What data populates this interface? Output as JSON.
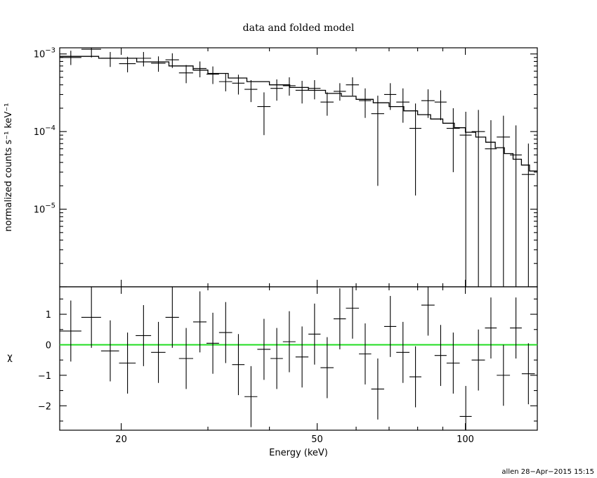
{
  "chart_data": [
    {
      "type": "scatter",
      "panel": "top",
      "title": "data and folded model",
      "ylabel": "normalized counts s⁻¹ keV⁻¹",
      "xscale": "log",
      "yscale": "log",
      "xlim": [
        15.0,
        140.0
      ],
      "ylim": [
        1e-06,
        0.0012
      ],
      "ytick_labels": [
        {
          "value": 0.001,
          "mantissa": "10",
          "exp": "−3"
        },
        {
          "value": 0.0001,
          "mantissa": "10",
          "exp": "−4"
        },
        {
          "value": 1e-05,
          "mantissa": "10",
          "exp": "−5"
        }
      ],
      "series": [
        {
          "kind": "data",
          "points": [
            {
              "x": 15.8,
              "xlo": 15.0,
              "xhi": 16.6,
              "y": 0.0009,
              "ylo": 0.00072,
              "yhi": 0.0011
            },
            {
              "x": 17.4,
              "xlo": 16.6,
              "xhi": 18.2,
              "y": 0.00115,
              "ylo": 0.0009,
              "yhi": 0.0012
            },
            {
              "x": 19.0,
              "xlo": 18.2,
              "xhi": 19.8,
              "y": 0.00088,
              "ylo": 0.00068,
              "yhi": 0.00106
            },
            {
              "x": 20.6,
              "xlo": 19.8,
              "xhi": 21.4,
              "y": 0.00075,
              "ylo": 0.00058,
              "yhi": 0.00092
            },
            {
              "x": 22.2,
              "xlo": 21.4,
              "xhi": 23.0,
              "y": 0.00088,
              "ylo": 0.00069,
              "yhi": 0.00106
            },
            {
              "x": 23.8,
              "xlo": 23.0,
              "xhi": 24.6,
              "y": 0.00076,
              "ylo": 0.00059,
              "yhi": 0.00093
            },
            {
              "x": 25.4,
              "xlo": 24.6,
              "xhi": 26.2,
              "y": 0.00084,
              "ylo": 0.00066,
              "yhi": 0.00102
            },
            {
              "x": 27.1,
              "xlo": 26.2,
              "xhi": 28.0,
              "y": 0.00057,
              "ylo": 0.00042,
              "yhi": 0.00072
            },
            {
              "x": 28.9,
              "xlo": 28.0,
              "xhi": 29.8,
              "y": 0.00065,
              "ylo": 0.0005,
              "yhi": 0.0008
            },
            {
              "x": 30.7,
              "xlo": 29.8,
              "xhi": 31.6,
              "y": 0.00055,
              "ylo": 0.00041,
              "yhi": 0.00069
            },
            {
              "x": 32.6,
              "xlo": 31.6,
              "xhi": 33.6,
              "y": 0.00044,
              "ylo": 0.00033,
              "yhi": 0.00056
            },
            {
              "x": 34.6,
              "xlo": 33.6,
              "xhi": 35.6,
              "y": 0.00042,
              "ylo": 0.0003,
              "yhi": 0.00054
            },
            {
              "x": 36.7,
              "xlo": 35.6,
              "xhi": 37.8,
              "y": 0.00035,
              "ylo": 0.00024,
              "yhi": 0.00046
            },
            {
              "x": 39.0,
              "xlo": 37.8,
              "xhi": 40.2,
              "y": 0.00021,
              "ylo": 9e-05,
              "yhi": 0.00032
            },
            {
              "x": 41.4,
              "xlo": 40.2,
              "xhi": 42.6,
              "y": 0.00036,
              "ylo": 0.00025,
              "yhi": 0.00047
            },
            {
              "x": 43.9,
              "xlo": 42.6,
              "xhi": 45.2,
              "y": 0.00039,
              "ylo": 0.00029,
              "yhi": 0.0005
            },
            {
              "x": 46.6,
              "xlo": 45.2,
              "xhi": 48.0,
              "y": 0.00034,
              "ylo": 0.00023,
              "yhi": 0.00045
            },
            {
              "x": 49.4,
              "xlo": 48.0,
              "xhi": 50.8,
              "y": 0.00036,
              "ylo": 0.00026,
              "yhi": 0.00046
            },
            {
              "x": 52.4,
              "xlo": 50.8,
              "xhi": 54.0,
              "y": 0.00024,
              "ylo": 0.00016,
              "yhi": 0.00032
            },
            {
              "x": 55.6,
              "xlo": 54.0,
              "xhi": 57.2,
              "y": 0.00033,
              "ylo": 0.00025,
              "yhi": 0.00042
            },
            {
              "x": 59.0,
              "xlo": 57.2,
              "xhi": 60.8,
              "y": 0.0004,
              "ylo": 0.00029,
              "yhi": 0.0005
            },
            {
              "x": 62.6,
              "xlo": 60.8,
              "xhi": 64.4,
              "y": 0.00025,
              "ylo": 0.00015,
              "yhi": 0.00036
            },
            {
              "x": 66.4,
              "xlo": 64.4,
              "xhi": 68.4,
              "y": 0.00017,
              "ylo": 2e-05,
              "yhi": 0.00029
            },
            {
              "x": 70.4,
              "xlo": 68.4,
              "xhi": 72.4,
              "y": 0.0003,
              "ylo": 0.00019,
              "yhi": 0.00042
            },
            {
              "x": 74.7,
              "xlo": 72.4,
              "xhi": 77.0,
              "y": 0.00024,
              "ylo": 0.00013,
              "yhi": 0.00036
            },
            {
              "x": 79.2,
              "xlo": 77.0,
              "xhi": 81.4,
              "y": 0.00011,
              "ylo": 1.5e-05,
              "yhi": 0.00023
            },
            {
              "x": 84.0,
              "xlo": 81.4,
              "xhi": 86.6,
              "y": 0.00025,
              "ylo": 0.00015,
              "yhi": 0.00035
            },
            {
              "x": 89.1,
              "xlo": 86.6,
              "xhi": 91.6,
              "y": 0.00024,
              "ylo": 0.00014,
              "yhi": 0.00034
            },
            {
              "x": 94.5,
              "xlo": 91.6,
              "xhi": 97.4,
              "y": 0.00011,
              "ylo": 3e-05,
              "yhi": 0.0002
            },
            {
              "x": 100.2,
              "xlo": 97.4,
              "xhi": 103.0,
              "y": 9e-05,
              "ylo": 1e-06,
              "yhi": 0.00018
            },
            {
              "x": 106.3,
              "xlo": 103.0,
              "xhi": 109.6,
              "y": 0.0001,
              "ylo": 1e-06,
              "yhi": 0.00019
            },
            {
              "x": 112.7,
              "xlo": 109.6,
              "xhi": 115.8,
              "y": 6e-05,
              "ylo": 1e-06,
              "yhi": 0.00014
            },
            {
              "x": 119.5,
              "xlo": 115.8,
              "xhi": 123.2,
              "y": 8.5e-05,
              "ylo": 1e-06,
              "yhi": 0.00016
            },
            {
              "x": 126.7,
              "xlo": 123.2,
              "xhi": 130.2,
              "y": 5e-05,
              "ylo": 1e-06,
              "yhi": 0.00012
            },
            {
              "x": 134.3,
              "xlo": 130.2,
              "xhi": 138.4,
              "y": 2.8e-05,
              "ylo": 1e-06,
              "yhi": 7e-05
            }
          ]
        },
        {
          "kind": "model",
          "edges": [
            15.0,
            18.0,
            21.5,
            25.0,
            28.0,
            30.0,
            33.0,
            36.0,
            40.0,
            44.0,
            48.0,
            52.0,
            56.0,
            60.0,
            65.0,
            70.0,
            75.0,
            80.0,
            85.0,
            90.0,
            95.0,
            100.0,
            105.0,
            110.0,
            115.0,
            120.0,
            125.0,
            130.0,
            135.0,
            140.0
          ],
          "values": [
            0.00093,
            0.00088,
            0.00079,
            0.0007,
            0.00062,
            0.00056,
            0.00049,
            0.00044,
            0.0004,
            0.00037,
            0.00034,
            0.00031,
            0.000285,
            0.00026,
            0.000235,
            0.00021,
            0.000185,
            0.000165,
            0.000145,
            0.000128,
            0.000112,
            9.8e-05,
            8.5e-05,
            7.3e-05,
            6.2e-05,
            5.2e-05,
            4.4e-05,
            3.7e-05,
            3.1e-05
          ]
        }
      ]
    },
    {
      "type": "scatter",
      "panel": "bottom",
      "xlabel": "Energy (keV)",
      "ylabel": "χ",
      "xscale": "log",
      "xlim": [
        15.0,
        140.0
      ],
      "ylim": [
        -2.8,
        1.9
      ],
      "xtick_labels": [
        {
          "value": 20,
          "label": "20"
        },
        {
          "value": 50,
          "label": "50"
        },
        {
          "value": 100,
          "label": "100"
        }
      ],
      "ytick_labels": [
        {
          "value": 1,
          "label": "1"
        },
        {
          "value": 0,
          "label": "0"
        },
        {
          "value": -1,
          "label": "−1"
        },
        {
          "value": -2,
          "label": "−2"
        }
      ],
      "zero_line_color": "#22dd22",
      "points": [
        {
          "x": 15.8,
          "xlo": 15.0,
          "xhi": 16.6,
          "y": 0.45,
          "ylo": -0.55,
          "yhi": 1.45
        },
        {
          "x": 17.4,
          "xlo": 16.6,
          "xhi": 18.2,
          "y": 0.9,
          "ylo": -0.1,
          "yhi": 1.9
        },
        {
          "x": 19.0,
          "xlo": 18.2,
          "xhi": 19.8,
          "y": -0.2,
          "ylo": -1.2,
          "yhi": 0.8
        },
        {
          "x": 20.6,
          "xlo": 19.8,
          "xhi": 21.4,
          "y": -0.6,
          "ylo": -1.6,
          "yhi": 0.4
        },
        {
          "x": 22.2,
          "xlo": 21.4,
          "xhi": 23.0,
          "y": 0.3,
          "ylo": -0.7,
          "yhi": 1.3
        },
        {
          "x": 23.8,
          "xlo": 23.0,
          "xhi": 24.6,
          "y": -0.25,
          "ylo": -1.25,
          "yhi": 0.75
        },
        {
          "x": 25.4,
          "xlo": 24.6,
          "xhi": 26.2,
          "y": 0.9,
          "ylo": -0.1,
          "yhi": 1.9
        },
        {
          "x": 27.1,
          "xlo": 26.2,
          "xhi": 28.0,
          "y": -0.45,
          "ylo": -1.45,
          "yhi": 0.55
        },
        {
          "x": 28.9,
          "xlo": 28.0,
          "xhi": 29.8,
          "y": 0.75,
          "ylo": -0.25,
          "yhi": 1.75
        },
        {
          "x": 30.7,
          "xlo": 29.8,
          "xhi": 31.6,
          "y": 0.05,
          "ylo": -0.95,
          "yhi": 1.05
        },
        {
          "x": 32.6,
          "xlo": 31.6,
          "xhi": 33.6,
          "y": 0.4,
          "ylo": -0.6,
          "yhi": 1.4
        },
        {
          "x": 34.6,
          "xlo": 33.6,
          "xhi": 35.6,
          "y": -0.65,
          "ylo": -1.65,
          "yhi": 0.35
        },
        {
          "x": 36.7,
          "xlo": 35.6,
          "xhi": 37.8,
          "y": -1.7,
          "ylo": -2.7,
          "yhi": -0.7
        },
        {
          "x": 39.0,
          "xlo": 37.8,
          "xhi": 40.2,
          "y": -0.15,
          "ylo": -1.15,
          "yhi": 0.85
        },
        {
          "x": 41.4,
          "xlo": 40.2,
          "xhi": 42.6,
          "y": -0.45,
          "ylo": -1.45,
          "yhi": 0.55
        },
        {
          "x": 43.9,
          "xlo": 42.6,
          "xhi": 45.2,
          "y": 0.1,
          "ylo": -0.9,
          "yhi": 1.1
        },
        {
          "x": 46.6,
          "xlo": 45.2,
          "xhi": 48.0,
          "y": -0.4,
          "ylo": -1.4,
          "yhi": 0.6
        },
        {
          "x": 49.4,
          "xlo": 48.0,
          "xhi": 50.8,
          "y": 0.35,
          "ylo": -0.65,
          "yhi": 1.35
        },
        {
          "x": 52.4,
          "xlo": 50.8,
          "xhi": 54.0,
          "y": -0.75,
          "ylo": -1.75,
          "yhi": 0.25
        },
        {
          "x": 55.6,
          "xlo": 54.0,
          "xhi": 57.2,
          "y": 0.85,
          "ylo": -0.15,
          "yhi": 1.85
        },
        {
          "x": 59.0,
          "xlo": 57.2,
          "xhi": 60.8,
          "y": 1.2,
          "ylo": 0.2,
          "yhi": 2.2
        },
        {
          "x": 62.6,
          "xlo": 60.8,
          "xhi": 64.4,
          "y": -0.3,
          "ylo": -1.3,
          "yhi": 0.7
        },
        {
          "x": 66.4,
          "xlo": 64.4,
          "xhi": 68.4,
          "y": -1.45,
          "ylo": -2.45,
          "yhi": -0.45
        },
        {
          "x": 70.4,
          "xlo": 68.4,
          "xhi": 72.4,
          "y": 0.6,
          "ylo": -0.4,
          "yhi": 1.6
        },
        {
          "x": 74.7,
          "xlo": 72.4,
          "xhi": 77.0,
          "y": -0.25,
          "ylo": -1.25,
          "yhi": 0.75
        },
        {
          "x": 79.2,
          "xlo": 77.0,
          "xhi": 81.4,
          "y": -1.05,
          "ylo": -2.05,
          "yhi": -0.05
        },
        {
          "x": 84.0,
          "xlo": 81.4,
          "xhi": 86.6,
          "y": 1.3,
          "ylo": 0.3,
          "yhi": 2.3
        },
        {
          "x": 89.1,
          "xlo": 86.6,
          "xhi": 91.6,
          "y": -0.35,
          "ylo": -1.35,
          "yhi": 0.65
        },
        {
          "x": 94.5,
          "xlo": 91.6,
          "xhi": 97.4,
          "y": -0.6,
          "ylo": -1.6,
          "yhi": 0.4
        },
        {
          "x": 100.2,
          "xlo": 97.4,
          "xhi": 103.0,
          "y": -2.35,
          "ylo": -3.35,
          "yhi": -1.35
        },
        {
          "x": 106.3,
          "xlo": 103.0,
          "xhi": 109.6,
          "y": -0.5,
          "ylo": -1.5,
          "yhi": 0.5
        },
        {
          "x": 112.7,
          "xlo": 109.6,
          "xhi": 115.8,
          "y": 0.55,
          "ylo": -0.45,
          "yhi": 1.55
        },
        {
          "x": 119.5,
          "xlo": 115.8,
          "xhi": 123.2,
          "y": -1.0,
          "ylo": -2.0,
          "yhi": 0.0
        },
        {
          "x": 126.7,
          "xlo": 123.2,
          "xhi": 130.2,
          "y": 0.55,
          "ylo": -0.45,
          "yhi": 1.55
        },
        {
          "x": 134.3,
          "xlo": 130.2,
          "xhi": 138.4,
          "y": -0.95,
          "ylo": -1.95,
          "yhi": 0.05
        }
      ]
    }
  ],
  "footer": {
    "stamp": "allen 28−Apr−2015 15:15"
  }
}
